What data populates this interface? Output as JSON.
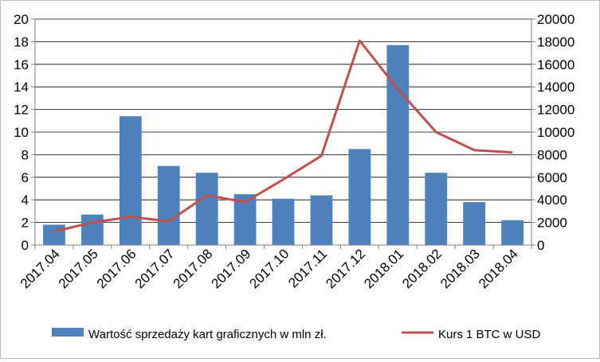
{
  "chart_data": {
    "type": "bar",
    "title": "",
    "xlabel": "",
    "ylabel": "",
    "categories": [
      "2017.04",
      "2017.05",
      "2017.06",
      "2017.07",
      "2017.08",
      "2017.09",
      "2017.10",
      "2017.11",
      "2017.12",
      "2018.01",
      "2018.02",
      "2018.03",
      "2018.04"
    ],
    "series": [
      {
        "name": "Wartość sprzedaży kart graficznych w mln zł.",
        "type": "bar",
        "axis": "left",
        "color": "#4f81bd",
        "values": [
          1.8,
          2.7,
          11.4,
          7.0,
          6.4,
          4.5,
          4.1,
          4.4,
          8.5,
          17.7,
          6.4,
          3.8,
          2.2
        ]
      },
      {
        "name": "Kurs 1 BTC w USD",
        "type": "line",
        "axis": "right",
        "color": "#c0504d",
        "values": [
          1200,
          2000,
          2500,
          2100,
          4400,
          3800,
          5800,
          7900,
          18100,
          13800,
          10000,
          8400,
          8200
        ]
      }
    ],
    "ylim_left": [
      0,
      20
    ],
    "yticks_left": [
      "0",
      "2",
      "4",
      "6",
      "8",
      "10",
      "12",
      "14",
      "16",
      "18",
      "20"
    ],
    "ylim_right": [
      0,
      20000
    ],
    "yticks_right": [
      "0",
      "2000",
      "4000",
      "6000",
      "8000",
      "10000",
      "12000",
      "14000",
      "16000",
      "18000",
      "20000"
    ],
    "grid": true,
    "legend_position": "bottom"
  }
}
